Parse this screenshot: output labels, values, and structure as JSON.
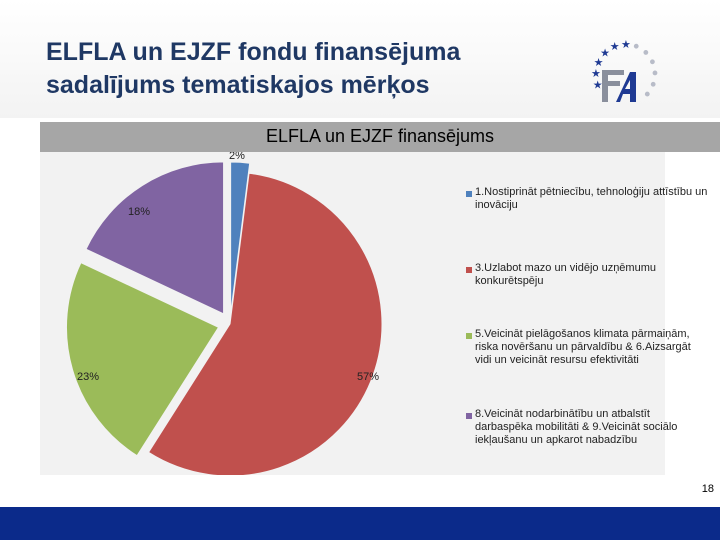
{
  "slide": {
    "title_lines": [
      "ELFLA un EJZF fondu finansējuma",
      "sadalījums tematiskajos mērķos"
    ],
    "page_number": "18"
  },
  "colors": {
    "title": "#1f3864",
    "bottom_bar": "#0b2a8a",
    "logo_stars": "#1f3a93",
    "logo_dots": "#b8bcc8"
  },
  "chart_data": {
    "type": "pie",
    "title": "ELFLA un EJZF finansējums",
    "legend_position": "right",
    "slices": [
      {
        "label": "1.Nostiprināt pētniecību, tehnoloģiju attīstību un inovāciju",
        "value": 2,
        "data_label": "2%",
        "color": "#4f81bd"
      },
      {
        "label": "3.Uzlabot mazo un vidējo uzņēmumu konkurētspēju",
        "value": 57,
        "data_label": "57%",
        "color": "#c0504d"
      },
      {
        "label": "5.Veicināt pielāgošanos klimata pārmaiņām, riska novēršanu un pārvaldību & 6.Aizsargāt vidi un veicināt resursu efektivitāti",
        "value": 23,
        "data_label": "23%",
        "color": "#9bbb59"
      },
      {
        "label": "8.Veicināt nodarbinātību un atbalstīt darbaspēka mobilitāti & 9.Veicināt sociālo iekļaušanu un apkarot nabadzību",
        "value": 18,
        "data_label": "18%",
        "color": "#8064a2"
      }
    ]
  }
}
